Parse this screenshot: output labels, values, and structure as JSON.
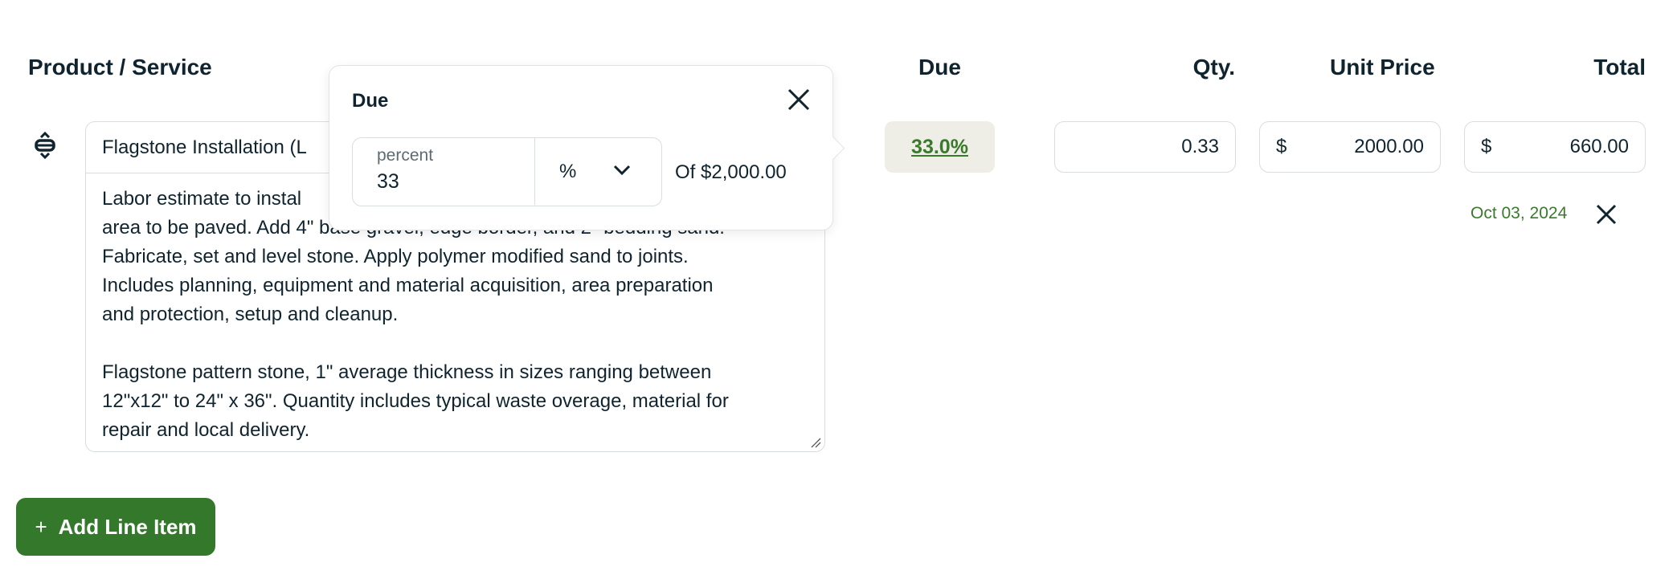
{
  "columns": {
    "product": "Product / Service",
    "due": "Due",
    "qty": "Qty.",
    "unit_price": "Unit Price",
    "total": "Total"
  },
  "line_item": {
    "name": "Flagstone Installation (L",
    "description_lines": [
      "Labor estimate to instal",
      "area to be paved. Add 4\" base gravel, edge border, and 2\" bedding sand.",
      "Fabricate, set and level stone. Apply polymer modified sand to joints.",
      "Includes planning, equipment and material acquisition, area preparation",
      "and protection, setup and cleanup.",
      "",
      "Flagstone pattern stone, 1\" average thickness in sizes ranging between",
      "12\"x12\" to 24\" x 36\". Quantity includes typical waste overage, material for",
      "repair and local delivery."
    ],
    "due": "33.0%",
    "qty": "0.33",
    "unit_price_currency": "$",
    "unit_price": "2000.00",
    "total_currency": "$",
    "total": "660.00",
    "due_date": "Oct 03, 2024"
  },
  "due_popup": {
    "title": "Due",
    "input_label": "percent",
    "input_value": "33",
    "unit": "%",
    "of_text": "Of $2,000.00"
  },
  "add_button": {
    "icon": "+",
    "label": "Add Line Item"
  },
  "colors": {
    "accent": "#34782b",
    "text": "#10242f",
    "badge_bg": "#eeede6"
  }
}
